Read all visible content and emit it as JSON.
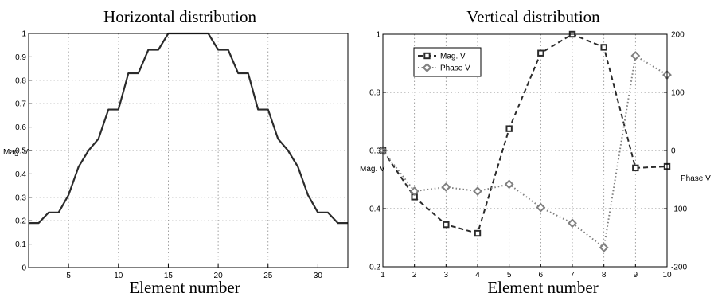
{
  "chart_data": [
    {
      "type": "line",
      "title": "Horizontal distribution",
      "xlabel": "Element number",
      "ylabel": "Mag. V",
      "xlim": [
        1,
        33
      ],
      "ylim": [
        0,
        1
      ],
      "xticks": [
        "5",
        "10",
        "15",
        "20",
        "25",
        "30"
      ],
      "yticks": [
        "0",
        "0.1",
        "0.2",
        "0.3",
        "0.4",
        "0.5",
        "0.6",
        "0.7",
        "0.8",
        "0.9",
        "1"
      ],
      "grid": true,
      "color": "#2b2b2b",
      "series": [
        {
          "x": [
            1,
            2,
            3,
            4,
            5,
            6,
            7,
            8,
            9,
            10,
            11,
            12,
            13,
            14,
            15,
            16,
            17,
            18,
            19,
            20,
            21,
            22,
            23,
            24,
            25,
            26,
            27,
            28,
            29,
            30,
            31,
            32,
            33
          ],
          "values": [
            0.19,
            0.19,
            0.235,
            0.235,
            0.31,
            0.43,
            0.5,
            0.55,
            0.675,
            0.675,
            0.83,
            0.83,
            0.93,
            0.93,
            1.0,
            1.0,
            1.0,
            1.0,
            1.0,
            0.93,
            0.93,
            0.83,
            0.83,
            0.675,
            0.675,
            0.55,
            0.5,
            0.43,
            0.31,
            0.235,
            0.235,
            0.19,
            0.19
          ]
        }
      ]
    },
    {
      "type": "line",
      "title": "Vertical distribution",
      "xlabel": "Element number",
      "ylabel": "Mag. V",
      "y2label": "Phase V",
      "xlim": [
        1,
        10
      ],
      "ylim": [
        0.2,
        1.0
      ],
      "y2lim": [
        -200,
        200
      ],
      "xticks": [
        "1",
        "2",
        "3",
        "4",
        "5",
        "6",
        "7",
        "8",
        "9",
        "10"
      ],
      "yticks": [
        "0.2",
        "0.4",
        "0.6",
        "0.8",
        "1"
      ],
      "y2ticks": [
        "-200",
        "-100",
        "0",
        "100",
        "200"
      ],
      "grid": true,
      "legend_position": "top-left",
      "series": [
        {
          "name": "Mag. V",
          "axis": "left",
          "style": "dashed",
          "marker": "square",
          "color": "#2b2b2b",
          "x": [
            1,
            2,
            3,
            4,
            5,
            6,
            7,
            8,
            9,
            10
          ],
          "values": [
            0.6,
            0.44,
            0.345,
            0.315,
            0.675,
            0.935,
            1.0,
            0.955,
            0.54,
            0.545
          ]
        },
        {
          "name": "Phase V",
          "axis": "right",
          "style": "dotted",
          "marker": "diamond",
          "color": "#808080",
          "x": [
            1,
            2,
            3,
            4,
            5,
            6,
            7,
            8,
            9,
            10
          ],
          "values": [
            0,
            -70,
            -63,
            -70,
            -58,
            -98,
            -125,
            -167,
            163,
            130
          ]
        }
      ]
    }
  ]
}
